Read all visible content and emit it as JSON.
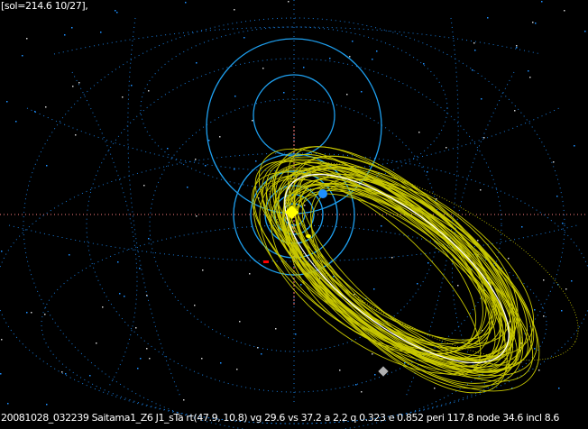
{
  "header": {
    "text": "[sol=214.6 10/27],"
  },
  "footer": {
    "text": "20081028_032239 Saitama1_Z6  J1_sTa rt(47.9, 10.8) vg 29.6 vs 37.2 a 2.2 q 0.323 e 0.852 peri 117.8 node 34.6  incl 8.6"
  },
  "colors": {
    "background": "#000000",
    "grid": "#1e90ff",
    "planet_orbits": "#1ea0f0",
    "meteor_orbits": "#c8c800",
    "mean_orbit": "#ffffff",
    "sun": "#ffff00",
    "earth": "#1e90ff",
    "mars": "#ff0000",
    "axis": "#ff8080"
  }
}
